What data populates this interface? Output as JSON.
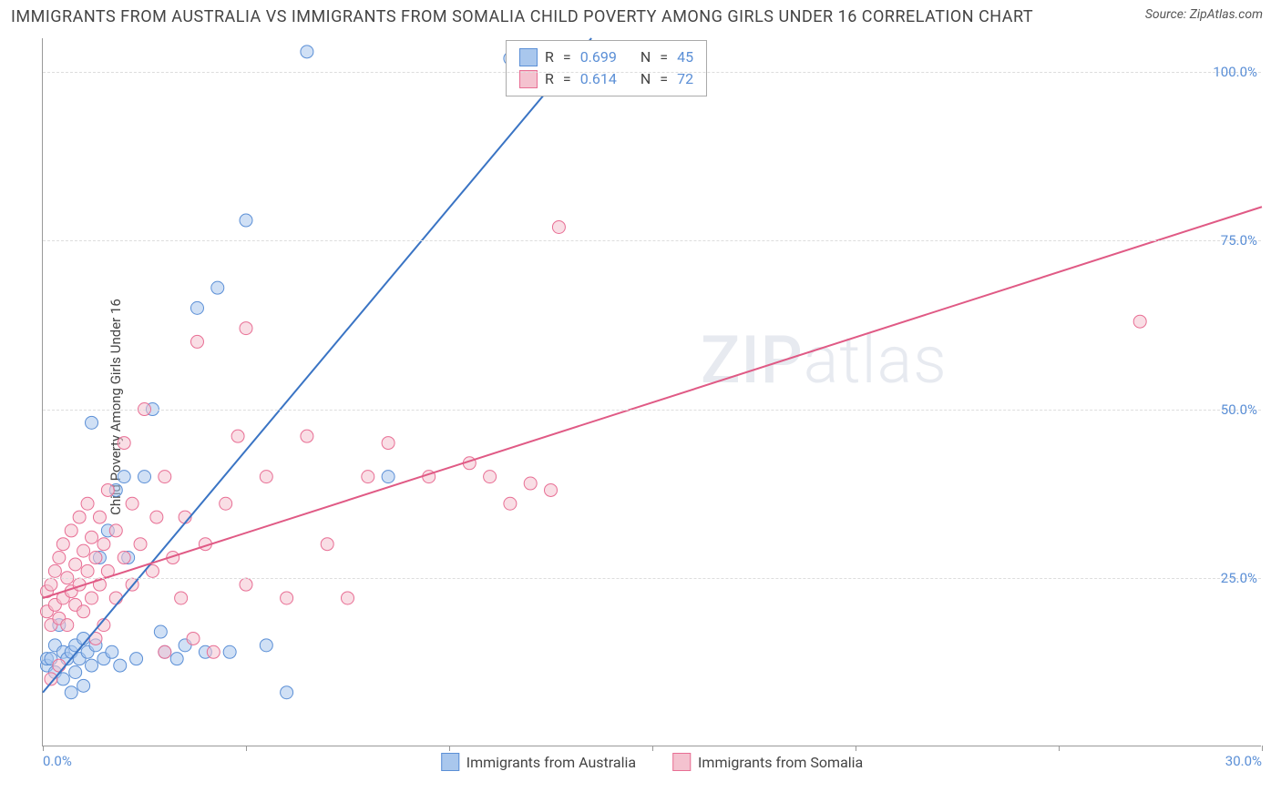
{
  "header": {
    "title": "IMMIGRANTS FROM AUSTRALIA VS IMMIGRANTS FROM SOMALIA CHILD POVERTY AMONG GIRLS UNDER 16 CORRELATION CHART",
    "source_label": "Source:",
    "source_value": "ZipAtlas.com"
  },
  "chart": {
    "type": "scatter",
    "ylabel": "Child Poverty Among Girls Under 16",
    "xlim": [
      0,
      30
    ],
    "ylim": [
      0,
      105
    ],
    "xticks": [
      0,
      5,
      10,
      15,
      20,
      25,
      30
    ],
    "xtick_labels": {
      "0": "0.0%",
      "30": "30.0%"
    },
    "yticks": [
      25,
      50,
      75,
      100
    ],
    "ytick_labels": {
      "25": "25.0%",
      "50": "50.0%",
      "75": "75.0%",
      "100": "100.0%"
    },
    "grid_color": "#dddddd",
    "axis_color": "#999999",
    "background_color": "#ffffff",
    "tick_label_color": "#5b8fd6",
    "marker_radius": 7,
    "marker_opacity": 0.55,
    "line_width": 2,
    "series": [
      {
        "name": "Immigrants from Australia",
        "color_fill": "#a9c7ed",
        "color_stroke": "#5b8fd6",
        "line_color": "#3a74c4",
        "R": "0.699",
        "N": "45",
        "trend": {
          "x1": 0,
          "y1": 8,
          "x2": 13.5,
          "y2": 105
        },
        "points": [
          [
            0.1,
            12
          ],
          [
            0.1,
            13
          ],
          [
            0.2,
            13
          ],
          [
            0.3,
            11
          ],
          [
            0.3,
            15
          ],
          [
            0.4,
            18
          ],
          [
            0.5,
            10
          ],
          [
            0.5,
            14
          ],
          [
            0.6,
            13
          ],
          [
            0.7,
            8
          ],
          [
            0.7,
            14
          ],
          [
            0.8,
            11
          ],
          [
            0.8,
            15
          ],
          [
            0.9,
            13
          ],
          [
            1.0,
            9
          ],
          [
            1.0,
            16
          ],
          [
            1.1,
            14
          ],
          [
            1.2,
            12
          ],
          [
            1.3,
            15
          ],
          [
            1.4,
            28
          ],
          [
            1.5,
            13
          ],
          [
            1.6,
            32
          ],
          [
            1.7,
            14
          ],
          [
            1.8,
            38
          ],
          [
            1.9,
            12
          ],
          [
            2.0,
            40
          ],
          [
            2.1,
            28
          ],
          [
            2.3,
            13
          ],
          [
            2.5,
            40
          ],
          [
            2.7,
            50
          ],
          [
            2.9,
            17
          ],
          [
            3.0,
            14
          ],
          [
            3.3,
            13
          ],
          [
            3.5,
            15
          ],
          [
            3.8,
            65
          ],
          [
            4.0,
            14
          ],
          [
            4.3,
            68
          ],
          [
            4.6,
            14
          ],
          [
            5.0,
            78
          ],
          [
            5.5,
            15
          ],
          [
            6.0,
            8
          ],
          [
            6.5,
            103
          ],
          [
            8.5,
            40
          ],
          [
            11.5,
            102
          ],
          [
            1.2,
            48
          ]
        ]
      },
      {
        "name": "Immigrants from Somalia",
        "color_fill": "#f4c2cf",
        "color_stroke": "#e86e94",
        "line_color": "#e05a85",
        "R": "0.614",
        "N": "72",
        "trend": {
          "x1": 0,
          "y1": 22,
          "x2": 30,
          "y2": 80
        },
        "points": [
          [
            0.1,
            20
          ],
          [
            0.1,
            23
          ],
          [
            0.2,
            18
          ],
          [
            0.2,
            24
          ],
          [
            0.3,
            21
          ],
          [
            0.3,
            26
          ],
          [
            0.4,
            19
          ],
          [
            0.4,
            28
          ],
          [
            0.5,
            22
          ],
          [
            0.5,
            30
          ],
          [
            0.6,
            18
          ],
          [
            0.6,
            25
          ],
          [
            0.7,
            23
          ],
          [
            0.7,
            32
          ],
          [
            0.8,
            21
          ],
          [
            0.8,
            27
          ],
          [
            0.9,
            24
          ],
          [
            0.9,
            34
          ],
          [
            1.0,
            20
          ],
          [
            1.0,
            29
          ],
          [
            1.1,
            26
          ],
          [
            1.1,
            36
          ],
          [
            1.2,
            22
          ],
          [
            1.2,
            31
          ],
          [
            1.3,
            28
          ],
          [
            1.3,
            16
          ],
          [
            1.4,
            24
          ],
          [
            1.4,
            34
          ],
          [
            1.5,
            30
          ],
          [
            1.5,
            18
          ],
          [
            1.6,
            26
          ],
          [
            1.6,
            38
          ],
          [
            1.8,
            22
          ],
          [
            1.8,
            32
          ],
          [
            2.0,
            45
          ],
          [
            2.0,
            28
          ],
          [
            2.2,
            24
          ],
          [
            2.2,
            36
          ],
          [
            2.4,
            30
          ],
          [
            2.5,
            50
          ],
          [
            2.7,
            26
          ],
          [
            2.8,
            34
          ],
          [
            3.0,
            14
          ],
          [
            3.0,
            40
          ],
          [
            3.2,
            28
          ],
          [
            3.4,
            22
          ],
          [
            3.5,
            34
          ],
          [
            3.7,
            16
          ],
          [
            3.8,
            60
          ],
          [
            4.0,
            30
          ],
          [
            4.2,
            14
          ],
          [
            4.5,
            36
          ],
          [
            4.8,
            46
          ],
          [
            5.0,
            24
          ],
          [
            5.0,
            62
          ],
          [
            5.5,
            40
          ],
          [
            6.0,
            22
          ],
          [
            6.5,
            46
          ],
          [
            7.0,
            30
          ],
          [
            7.5,
            22
          ],
          [
            8.0,
            40
          ],
          [
            8.5,
            45
          ],
          [
            9.5,
            40
          ],
          [
            10.5,
            42
          ],
          [
            11.0,
            40
          ],
          [
            11.5,
            36
          ],
          [
            12.0,
            39
          ],
          [
            12.5,
            38
          ],
          [
            12.7,
            77
          ],
          [
            27.0,
            63
          ],
          [
            0.2,
            10
          ],
          [
            0.4,
            12
          ]
        ]
      }
    ],
    "stats_legend": {
      "R_label": "R",
      "N_label": "N",
      "eq": "="
    },
    "bottom_legend": [
      {
        "series": 0
      },
      {
        "series": 1
      }
    ],
    "watermark": {
      "text_bold": "ZIP",
      "text_thin": "atlas"
    }
  }
}
